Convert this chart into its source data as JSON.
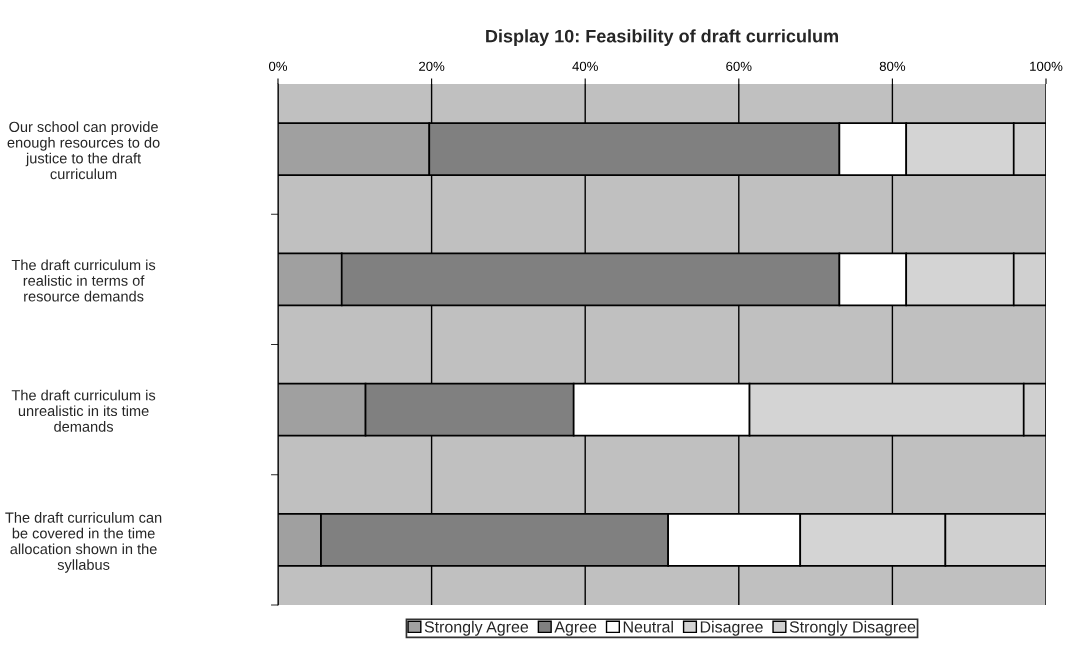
{
  "chart_data": {
    "type": "bar",
    "orientation": "horizontal",
    "stacked": true,
    "title": "Display 10: Feasibility of draft curriculum",
    "categories": [
      "Our school can provide enough resources to do justice to the draft curriculum",
      "The draft curriculum is realistic in terms of resource demands",
      "The draft curriculum is unrealistic in its time demands",
      "The draft curriculum can be covered in the time allocation shown in the syllabus"
    ],
    "series": [
      {
        "name": "Strongly Agree",
        "color": "#a0a0a0",
        "values": [
          19.7,
          8.3,
          11.4,
          5.6
        ]
      },
      {
        "name": "Agree",
        "color": "#808080",
        "values": [
          53.4,
          64.8,
          27.1,
          45.2
        ]
      },
      {
        "name": "Neutral",
        "color": "#ffffff",
        "values": [
          8.7,
          8.7,
          22.9,
          17.2
        ]
      },
      {
        "name": "Disagree",
        "color": "#d4d4d4",
        "values": [
          14.0,
          14.0,
          35.7,
          18.9
        ]
      },
      {
        "name": "Strongly Disagree",
        "color": "#d0d0d0",
        "values": [
          4.2,
          4.2,
          2.9,
          13.1
        ]
      }
    ],
    "xlim": [
      0,
      100
    ],
    "xticks": [
      {
        "value": 0,
        "label": "0%"
      },
      {
        "value": 20,
        "label": "20%"
      },
      {
        "value": 40,
        "label": "40%"
      },
      {
        "value": 60,
        "label": "60%"
      },
      {
        "value": 80,
        "label": "80%"
      },
      {
        "value": 100,
        "label": "100%"
      }
    ],
    "grid": "x",
    "legend": "bottom"
  }
}
